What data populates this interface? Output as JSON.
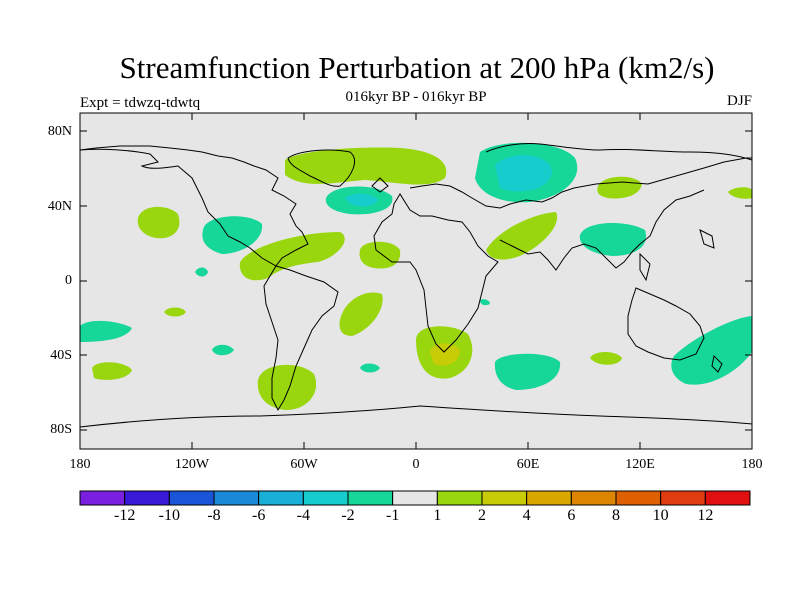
{
  "title": "Streamfunction Perturbation at 200 hPa (km2/s)",
  "subtitle": "016kyr BP - 016kyr BP",
  "left_label": "Expt = tdwzq-tdwtq",
  "right_label": "DJF",
  "lat_ticks": [
    "80N",
    "40N",
    "0",
    "40S",
    "80S"
  ],
  "lon_ticks": [
    "180",
    "120W",
    "60W",
    "0",
    "60E",
    "120E",
    "180"
  ],
  "colorbar": {
    "colors": [
      "#7a1fe0",
      "#3a18d8",
      "#1a55d8",
      "#1a8ad8",
      "#18b0d8",
      "#17cccc",
      "#16d69a",
      "#e6e6e6",
      "#99d60d",
      "#c8cc06",
      "#d9a800",
      "#dd8400",
      "#df6000",
      "#e03c10",
      "#e01010"
    ],
    "labels": [
      "-12",
      "-10",
      "-8",
      "-6",
      "-4",
      "-2",
      "-1",
      "1",
      "2",
      "4",
      "6",
      "8",
      "10",
      "12"
    ]
  },
  "colors": {
    "background": "#e6e6e6",
    "positive_1": "#99d60d",
    "positive_2": "#c8cc06",
    "negative_1": "#16d69a",
    "negative_2": "#17cccc"
  }
}
